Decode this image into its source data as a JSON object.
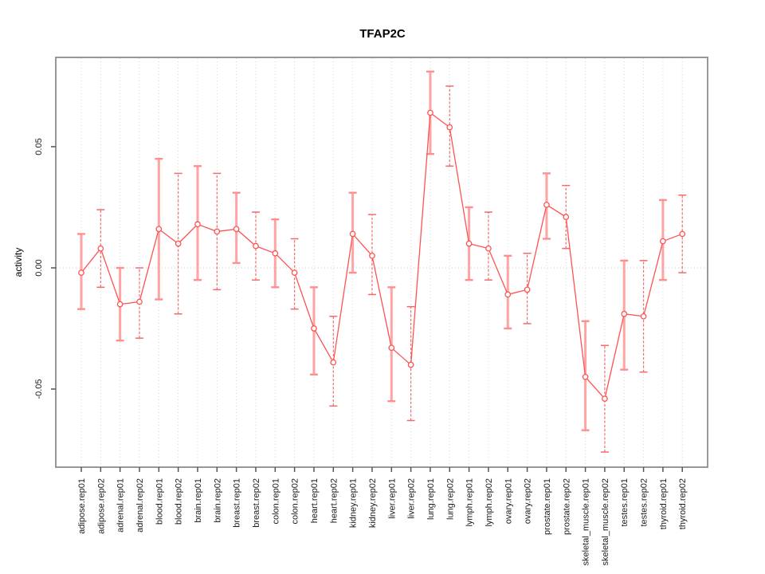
{
  "chart_data": {
    "type": "scatter",
    "title": "TFAP2C",
    "xlabel": "",
    "ylabel": "activity",
    "legend": "none",
    "grid": "vertical dotted gridline at each category; dotted horizontal line at y=0",
    "marker": "open-circle with error bars (caps), points connected by line",
    "ylim": [
      -0.082,
      0.087
    ],
    "yticks": [
      {
        "label": "-0.05",
        "value": -0.05
      },
      {
        "label": "0.00",
        "value": 0.0
      },
      {
        "label": "0.05",
        "value": 0.05
      }
    ],
    "categories": [
      "adipose.rep01",
      "adipose.rep02",
      "adrenal.rep01",
      "adrenal.rep02",
      "blood.rep01",
      "blood.rep02",
      "brain.rep01",
      "brain.rep02",
      "breast.rep01",
      "breast.rep02",
      "colon.rep01",
      "colon.rep02",
      "heart.rep01",
      "heart.rep02",
      "kidney.rep01",
      "kidney.rep02",
      "liver.rep01",
      "liver.rep02",
      "lung.rep01",
      "lung.rep02",
      "lymph.rep01",
      "lymph.rep02",
      "ovary.rep01",
      "ovary.rep02",
      "prostate.rep01",
      "prostate.rep02",
      "skeletal_muscle.rep01",
      "skeletal_muscle.rep02",
      "testes.rep01",
      "testes.rep02",
      "thyroid.rep01",
      "thyroid.rep02"
    ],
    "series": [
      {
        "name": "activity",
        "values": [
          -0.002,
          0.008,
          -0.015,
          -0.014,
          0.016,
          0.01,
          0.018,
          0.015,
          0.016,
          0.009,
          0.006,
          -0.002,
          -0.025,
          -0.039,
          0.014,
          0.005,
          -0.033,
          -0.04,
          0.064,
          0.058,
          0.01,
          0.008,
          -0.011,
          -0.009,
          0.026,
          0.021,
          -0.045,
          -0.054,
          -0.019,
          -0.02,
          0.011,
          0.014
        ],
        "err_low": [
          -0.017,
          -0.008,
          -0.03,
          -0.029,
          -0.013,
          -0.019,
          -0.005,
          -0.009,
          0.002,
          -0.005,
          -0.008,
          -0.017,
          -0.044,
          -0.057,
          -0.002,
          -0.011,
          -0.055,
          -0.063,
          0.047,
          0.042,
          -0.005,
          -0.005,
          -0.025,
          -0.023,
          0.012,
          0.008,
          -0.067,
          -0.076,
          -0.042,
          -0.043,
          -0.005,
          -0.002
        ],
        "err_high": [
          0.014,
          0.024,
          0.0,
          0.0,
          0.045,
          0.039,
          0.042,
          0.039,
          0.031,
          0.023,
          0.02,
          0.012,
          -0.008,
          -0.02,
          0.031,
          0.022,
          -0.008,
          -0.016,
          0.081,
          0.075,
          0.025,
          0.023,
          0.005,
          0.006,
          0.039,
          0.034,
          -0.022,
          -0.032,
          0.003,
          0.003,
          0.028,
          0.03
        ]
      }
    ],
    "colors": {
      "line": "#ff5252",
      "marker_stroke": "#ff5252",
      "marker_fill": "#ffffff",
      "bar_solid": "#ffa3a3",
      "bar_dashed": "#f26b6b",
      "grid": "#d4d4d4",
      "zero_line": "#c9c9c9",
      "axis_box": "#8c8c8c",
      "tick": "#555555",
      "text": "#1a1a1a",
      "background": "#ffffff"
    }
  }
}
